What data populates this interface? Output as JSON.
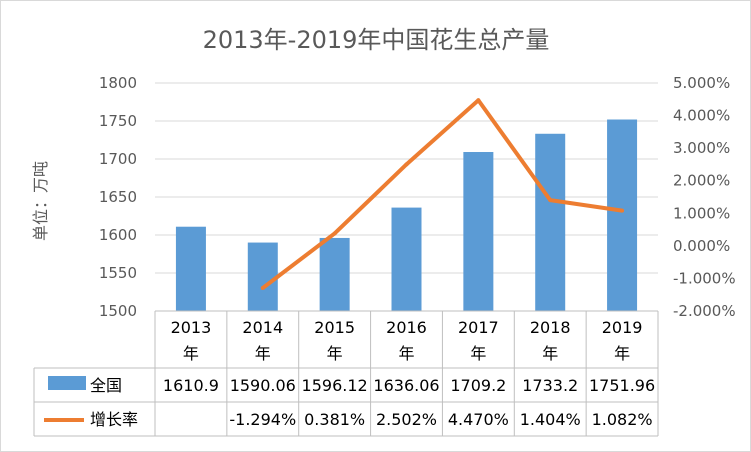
{
  "chart_data": {
    "type": "bar+line",
    "title": "2013年-2019年中国花生总产量",
    "ylabel": "单位：万吨",
    "categories": [
      "2013年",
      "2014年",
      "2015年",
      "2016年",
      "2017年",
      "2018年",
      "2019年"
    ],
    "category_lines": [
      [
        "2013",
        "年"
      ],
      [
        "2014",
        "年"
      ],
      [
        "2015",
        "年"
      ],
      [
        "2016",
        "年"
      ],
      [
        "2017",
        "年"
      ],
      [
        "2018",
        "年"
      ],
      [
        "2019",
        "年"
      ]
    ],
    "ylim": [
      1500,
      1800
    ],
    "y_ticks": [
      "1500",
      "1550",
      "1600",
      "1650",
      "1700",
      "1750",
      "1800"
    ],
    "y2lim": [
      -2.0,
      5.0
    ],
    "y2_ticks": [
      "-2.000%",
      "-1.000%",
      "0.000%",
      "1.000%",
      "2.000%",
      "3.000%",
      "4.000%",
      "5.000%"
    ],
    "grid": true,
    "legend": "data-table",
    "series": [
      {
        "name": "全国",
        "type": "bar",
        "axis": "left",
        "color": "#5b9bd5",
        "values": [
          1610.9,
          1590.06,
          1596.12,
          1636.06,
          1709.2,
          1733.2,
          1751.96
        ],
        "labels": [
          "1610.9",
          "1590.06",
          "1596.12",
          "1636.06",
          "1709.2",
          "1733.2",
          "1751.96"
        ]
      },
      {
        "name": "增长率",
        "type": "line",
        "axis": "right",
        "color": "#ed7d31",
        "values": [
          null,
          -1.294,
          0.381,
          2.502,
          4.47,
          1.404,
          1.082
        ],
        "labels": [
          "",
          "-1.294%",
          "0.381%",
          "2.502%",
          "4.470%",
          "1.404%",
          "1.082%"
        ]
      }
    ]
  }
}
